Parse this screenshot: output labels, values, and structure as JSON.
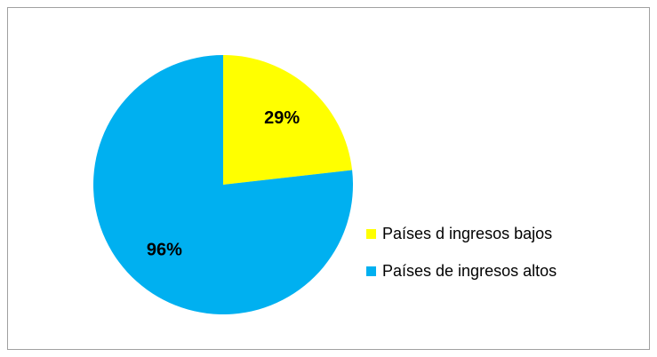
{
  "chart_data": {
    "type": "pie",
    "categories": [
      "Países d ingresos bajos",
      "Países de ingresos altos"
    ],
    "values": [
      29,
      96
    ],
    "value_labels": [
      "29%",
      "96%"
    ],
    "colors": [
      "#ffff00",
      "#00b0f0"
    ],
    "legend": "right"
  }
}
